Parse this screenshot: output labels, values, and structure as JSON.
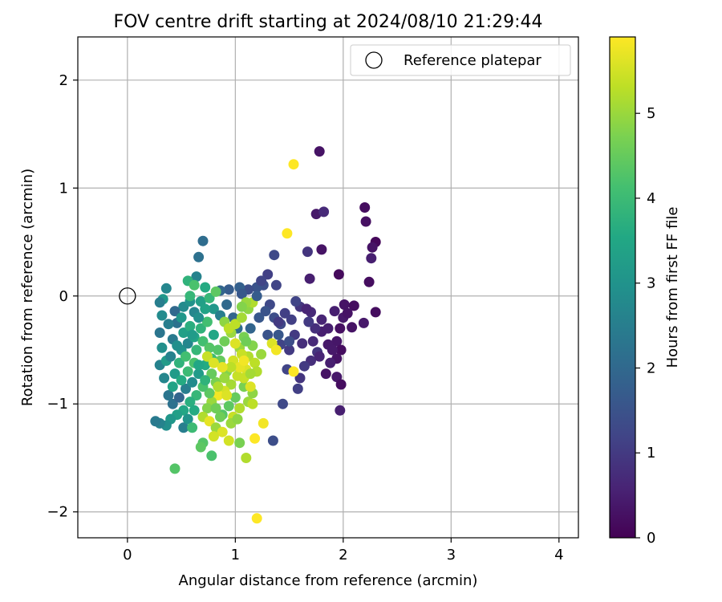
{
  "chart_data": {
    "type": "scatter",
    "title": "FOV centre drift starting at 2024/08/10 21:29:44",
    "xlabel": "Angular distance from reference (arcmin)",
    "ylabel": "Rotation from reference (arcmin)",
    "xlim": [
      -0.46,
      4.18
    ],
    "ylim": [
      -2.24,
      2.4
    ],
    "xticks": [
      0,
      1,
      2,
      3,
      4
    ],
    "yticks": [
      -2,
      -1,
      0,
      1,
      2
    ],
    "grid": true,
    "legend": {
      "position": "top-right",
      "entries": [
        "Reference platepar"
      ]
    },
    "reference_point": {
      "x": 0,
      "y": 0,
      "label": "Reference platepar"
    },
    "colorbar": {
      "label": "Hours from first FF file",
      "min": 0,
      "max": 5.9,
      "ticks": [
        0,
        1,
        2,
        3,
        4,
        5
      ],
      "colormap": "viridis"
    },
    "points": [
      {
        "x": 1.78,
        "y": 1.34,
        "h": 0.3
      },
      {
        "x": 2.2,
        "y": 0.82,
        "h": 0.2
      },
      {
        "x": 2.21,
        "y": 0.69,
        "h": 0.25
      },
      {
        "x": 2.3,
        "y": 0.5,
        "h": 0.1
      },
      {
        "x": 2.27,
        "y": 0.45,
        "h": 0.3
      },
      {
        "x": 2.26,
        "y": 0.35,
        "h": 0.5
      },
      {
        "x": 2.24,
        "y": 0.13,
        "h": 0.2
      },
      {
        "x": 1.96,
        "y": 0.2,
        "h": 0.15
      },
      {
        "x": 1.8,
        "y": 0.43,
        "h": 0.3
      },
      {
        "x": 1.75,
        "y": 0.76,
        "h": 0.4
      },
      {
        "x": 1.82,
        "y": 0.78,
        "h": 0.7
      },
      {
        "x": 1.67,
        "y": 0.41,
        "h": 0.9
      },
      {
        "x": 1.69,
        "y": 0.16,
        "h": 0.5
      },
      {
        "x": 2.3,
        "y": -0.15,
        "h": 0.2
      },
      {
        "x": 2.1,
        "y": -0.09,
        "h": 0.2
      },
      {
        "x": 2.01,
        "y": -0.08,
        "h": 0.3
      },
      {
        "x": 2.08,
        "y": -0.29,
        "h": 0.3
      },
      {
        "x": 2.19,
        "y": -0.25,
        "h": 0.4
      },
      {
        "x": 1.97,
        "y": -0.3,
        "h": 0.25
      },
      {
        "x": 1.94,
        "y": -0.42,
        "h": 0.35
      },
      {
        "x": 1.98,
        "y": -0.5,
        "h": 0.2
      },
      {
        "x": 1.94,
        "y": -0.58,
        "h": 0.3
      },
      {
        "x": 1.84,
        "y": -0.72,
        "h": 0.3
      },
      {
        "x": 1.94,
        "y": -0.75,
        "h": 0.4
      },
      {
        "x": 1.98,
        "y": -0.82,
        "h": 0.2
      },
      {
        "x": 1.97,
        "y": -1.06,
        "h": 0.5
      },
      {
        "x": 1.86,
        "y": -0.45,
        "h": 0.4
      },
      {
        "x": 1.8,
        "y": -0.33,
        "h": 0.5
      },
      {
        "x": 1.8,
        "y": -0.22,
        "h": 0.6
      },
      {
        "x": 1.92,
        "y": -0.14,
        "h": 0.5
      },
      {
        "x": 2.0,
        "y": -0.2,
        "h": 0.4
      },
      {
        "x": 1.7,
        "y": -0.15,
        "h": 0.7
      },
      {
        "x": 1.74,
        "y": -0.3,
        "h": 0.8
      },
      {
        "x": 1.76,
        "y": -0.52,
        "h": 0.9
      },
      {
        "x": 1.7,
        "y": -0.6,
        "h": 0.8
      },
      {
        "x": 1.64,
        "y": -0.65,
        "h": 1.0
      },
      {
        "x": 1.6,
        "y": -0.76,
        "h": 0.9
      },
      {
        "x": 1.58,
        "y": -0.86,
        "h": 1.1
      },
      {
        "x": 1.48,
        "y": -0.68,
        "h": 1.2
      },
      {
        "x": 1.62,
        "y": -0.44,
        "h": 0.8
      },
      {
        "x": 1.55,
        "y": -0.36,
        "h": 1.0
      },
      {
        "x": 1.52,
        "y": -0.22,
        "h": 1.1
      },
      {
        "x": 1.6,
        "y": -0.1,
        "h": 0.9
      },
      {
        "x": 1.56,
        "y": -0.05,
        "h": 1.2
      },
      {
        "x": 1.46,
        "y": -0.16,
        "h": 1.1
      },
      {
        "x": 1.42,
        "y": -0.26,
        "h": 1.3
      },
      {
        "x": 1.36,
        "y": -0.2,
        "h": 1.4
      },
      {
        "x": 1.32,
        "y": -0.08,
        "h": 1.3
      },
      {
        "x": 1.38,
        "y": 0.1,
        "h": 1.2
      },
      {
        "x": 1.3,
        "y": 0.2,
        "h": 1.1
      },
      {
        "x": 1.26,
        "y": 0.1,
        "h": 1.4
      },
      {
        "x": 1.36,
        "y": 0.38,
        "h": 1.3
      },
      {
        "x": 1.2,
        "y": 0.08,
        "h": 1.5
      },
      {
        "x": 1.22,
        "y": -0.2,
        "h": 1.6
      },
      {
        "x": 1.12,
        "y": 0.06,
        "h": 1.4
      },
      {
        "x": 1.04,
        "y": 0.08,
        "h": 1.8
      },
      {
        "x": 1.06,
        "y": 0.02,
        "h": 1.6
      },
      {
        "x": 1.3,
        "y": -0.36,
        "h": 1.5
      },
      {
        "x": 1.42,
        "y": -0.45,
        "h": 1.2
      },
      {
        "x": 1.5,
        "y": -0.5,
        "h": 1.0
      },
      {
        "x": 1.44,
        "y": -1.0,
        "h": 1.3
      },
      {
        "x": 1.35,
        "y": -1.34,
        "h": 1.4
      },
      {
        "x": 1.14,
        "y": -0.3,
        "h": 1.9
      },
      {
        "x": 0.94,
        "y": 0.06,
        "h": 1.7
      },
      {
        "x": 0.86,
        "y": 0.05,
        "h": 1.9
      },
      {
        "x": 0.7,
        "y": 0.51,
        "h": 2.1
      },
      {
        "x": 0.66,
        "y": 0.36,
        "h": 2.2
      },
      {
        "x": 0.64,
        "y": 0.18,
        "h": 2.6
      },
      {
        "x": 0.56,
        "y": 0.14,
        "h": 3.8
      },
      {
        "x": 0.36,
        "y": 0.07,
        "h": 2.7
      },
      {
        "x": 0.33,
        "y": -0.03,
        "h": 3.1
      },
      {
        "x": 0.3,
        "y": -0.06,
        "h": 2.5
      },
      {
        "x": 0.32,
        "y": -0.18,
        "h": 2.8
      },
      {
        "x": 0.3,
        "y": -0.34,
        "h": 2.3
      },
      {
        "x": 0.32,
        "y": -0.48,
        "h": 2.9
      },
      {
        "x": 0.3,
        "y": -0.64,
        "h": 2.6
      },
      {
        "x": 0.36,
        "y": -0.6,
        "h": 3.2
      },
      {
        "x": 0.42,
        "y": -0.4,
        "h": 2.4
      },
      {
        "x": 0.46,
        "y": -0.25,
        "h": 2.2
      },
      {
        "x": 0.52,
        "y": -0.1,
        "h": 2.8
      },
      {
        "x": 0.58,
        "y": -0.05,
        "h": 3.0
      },
      {
        "x": 0.62,
        "y": -0.15,
        "h": 2.7
      },
      {
        "x": 0.68,
        "y": -0.05,
        "h": 3.3
      },
      {
        "x": 0.72,
        "y": 0.08,
        "h": 3.6
      },
      {
        "x": 0.76,
        "y": -0.02,
        "h": 3.9
      },
      {
        "x": 0.8,
        "y": -0.12,
        "h": 3.1
      },
      {
        "x": 0.86,
        "y": -0.18,
        "h": 2.5
      },
      {
        "x": 0.92,
        "y": -0.08,
        "h": 2.0
      },
      {
        "x": 0.98,
        "y": -0.2,
        "h": 1.9
      },
      {
        "x": 1.02,
        "y": -0.3,
        "h": 2.1
      },
      {
        "x": 1.08,
        "y": -0.38,
        "h": 4.7
      },
      {
        "x": 1.04,
        "y": -0.48,
        "h": 5.0
      },
      {
        "x": 1.12,
        "y": -0.56,
        "h": 5.2
      },
      {
        "x": 1.18,
        "y": -0.62,
        "h": 5.3
      },
      {
        "x": 1.1,
        "y": -0.68,
        "h": 5.6
      },
      {
        "x": 1.02,
        "y": -0.74,
        "h": 5.4
      },
      {
        "x": 0.96,
        "y": -0.82,
        "h": 5.1
      },
      {
        "x": 0.9,
        "y": -0.88,
        "h": 5.5
      },
      {
        "x": 0.84,
        "y": -0.92,
        "h": 5.8
      },
      {
        "x": 0.78,
        "y": -0.98,
        "h": 5.0
      },
      {
        "x": 0.74,
        "y": -1.04,
        "h": 4.8
      },
      {
        "x": 0.7,
        "y": -1.12,
        "h": 5.2
      },
      {
        "x": 0.76,
        "y": -1.16,
        "h": 5.7
      },
      {
        "x": 0.82,
        "y": -1.22,
        "h": 5.0
      },
      {
        "x": 0.88,
        "y": -1.26,
        "h": 5.6
      },
      {
        "x": 0.98,
        "y": -1.12,
        "h": 5.4
      },
      {
        "x": 1.04,
        "y": -1.04,
        "h": 5.2
      },
      {
        "x": 1.12,
        "y": -0.98,
        "h": 5.0
      },
      {
        "x": 1.16,
        "y": -0.9,
        "h": 4.9
      },
      {
        "x": 1.08,
        "y": -0.84,
        "h": 4.7
      },
      {
        "x": 1.0,
        "y": -0.94,
        "h": 4.5
      },
      {
        "x": 0.94,
        "y": -1.02,
        "h": 4.4
      },
      {
        "x": 0.88,
        "y": -1.1,
        "h": 4.3
      },
      {
        "x": 0.82,
        "y": -1.04,
        "h": 4.6
      },
      {
        "x": 0.76,
        "y": -0.9,
        "h": 4.4
      },
      {
        "x": 0.7,
        "y": -0.84,
        "h": 4.2
      },
      {
        "x": 0.64,
        "y": -0.92,
        "h": 3.9
      },
      {
        "x": 0.58,
        "y": -0.98,
        "h": 3.7
      },
      {
        "x": 0.52,
        "y": -1.06,
        "h": 3.5
      },
      {
        "x": 0.46,
        "y": -1.1,
        "h": 3.3
      },
      {
        "x": 0.4,
        "y": -1.14,
        "h": 3.1
      },
      {
        "x": 0.36,
        "y": -1.2,
        "h": 2.9
      },
      {
        "x": 0.3,
        "y": -1.18,
        "h": 2.6
      },
      {
        "x": 0.26,
        "y": -1.16,
        "h": 2.4
      },
      {
        "x": 0.42,
        "y": -1.0,
        "h": 2.2
      },
      {
        "x": 0.48,
        "y": -0.94,
        "h": 1.9
      },
      {
        "x": 0.54,
        "y": -0.86,
        "h": 2.5
      },
      {
        "x": 0.6,
        "y": -0.8,
        "h": 2.8
      },
      {
        "x": 0.66,
        "y": -0.72,
        "h": 3.2
      },
      {
        "x": 0.72,
        "y": -0.64,
        "h": 3.6
      },
      {
        "x": 0.78,
        "y": -0.58,
        "h": 4.0
      },
      {
        "x": 0.84,
        "y": -0.5,
        "h": 4.3
      },
      {
        "x": 0.9,
        "y": -0.42,
        "h": 4.6
      },
      {
        "x": 0.96,
        "y": -0.34,
        "h": 5.0
      },
      {
        "x": 1.0,
        "y": -0.26,
        "h": 5.3
      },
      {
        "x": 1.06,
        "y": -0.2,
        "h": 5.1
      },
      {
        "x": 1.12,
        "y": -0.12,
        "h": 4.9
      },
      {
        "x": 1.16,
        "y": -0.06,
        "h": 5.2
      },
      {
        "x": 0.5,
        "y": -0.5,
        "h": 3.0
      },
      {
        "x": 0.56,
        "y": -0.44,
        "h": 2.7
      },
      {
        "x": 0.62,
        "y": -0.38,
        "h": 3.4
      },
      {
        "x": 0.68,
        "y": -0.3,
        "h": 3.8
      },
      {
        "x": 0.74,
        "y": -0.24,
        "h": 4.1
      },
      {
        "x": 0.8,
        "y": -0.36,
        "h": 3.5
      },
      {
        "x": 0.86,
        "y": -0.6,
        "h": 4.5
      },
      {
        "x": 0.92,
        "y": -0.7,
        "h": 4.8
      },
      {
        "x": 0.98,
        "y": -0.6,
        "h": 5.5
      },
      {
        "x": 1.04,
        "y": -0.66,
        "h": 5.7
      },
      {
        "x": 0.44,
        "y": -0.72,
        "h": 3.2
      },
      {
        "x": 0.5,
        "y": -0.78,
        "h": 3.6
      },
      {
        "x": 0.56,
        "y": -0.7,
        "h": 4.0
      },
      {
        "x": 0.62,
        "y": -0.62,
        "h": 4.2
      },
      {
        "x": 0.4,
        "y": -0.56,
        "h": 2.6
      },
      {
        "x": 0.46,
        "y": -0.46,
        "h": 2.9
      },
      {
        "x": 0.52,
        "y": -0.34,
        "h": 3.3
      },
      {
        "x": 0.58,
        "y": -0.28,
        "h": 3.7
      },
      {
        "x": 0.64,
        "y": -0.5,
        "h": 3.9
      },
      {
        "x": 0.7,
        "y": -0.42,
        "h": 4.1
      },
      {
        "x": 0.76,
        "y": -0.48,
        "h": 4.3
      },
      {
        "x": 0.82,
        "y": -0.8,
        "h": 4.7
      },
      {
        "x": 0.78,
        "y": -0.72,
        "h": 4.5
      },
      {
        "x": 0.9,
        "y": -0.76,
        "h": 5.0
      },
      {
        "x": 0.96,
        "y": -0.66,
        "h": 5.3
      },
      {
        "x": 1.08,
        "y": -0.76,
        "h": 5.4
      },
      {
        "x": 1.14,
        "y": -0.84,
        "h": 5.6
      },
      {
        "x": 1.2,
        "y": -0.7,
        "h": 5.2
      },
      {
        "x": 1.24,
        "y": -0.54,
        "h": 5.0
      },
      {
        "x": 1.16,
        "y": -0.46,
        "h": 4.8
      },
      {
        "x": 1.1,
        "y": -0.42,
        "h": 4.6
      },
      {
        "x": 1.34,
        "y": -0.44,
        "h": 5.6
      },
      {
        "x": 1.38,
        "y": -0.5,
        "h": 5.8
      },
      {
        "x": 1.54,
        "y": -0.7,
        "h": 5.9
      },
      {
        "x": 1.26,
        "y": -1.18,
        "h": 5.8
      },
      {
        "x": 1.18,
        "y": -1.32,
        "h": 5.9
      },
      {
        "x": 1.1,
        "y": -1.5,
        "h": 5.2
      },
      {
        "x": 1.04,
        "y": -1.36,
        "h": 4.7
      },
      {
        "x": 0.96,
        "y": -1.18,
        "h": 5.0
      },
      {
        "x": 0.86,
        "y": -1.12,
        "h": 4.6
      },
      {
        "x": 0.8,
        "y": -1.3,
        "h": 5.5
      },
      {
        "x": 0.78,
        "y": -1.48,
        "h": 4.2
      },
      {
        "x": 0.7,
        "y": -1.36,
        "h": 4.3
      },
      {
        "x": 0.68,
        "y": -1.4,
        "h": 4.4
      },
      {
        "x": 0.44,
        "y": -1.6,
        "h": 4.3
      },
      {
        "x": 1.2,
        "y": -2.06,
        "h": 5.9
      },
      {
        "x": 1.54,
        "y": 1.22,
        "h": 5.9
      },
      {
        "x": 1.48,
        "y": 0.58,
        "h": 5.9
      },
      {
        "x": 0.52,
        "y": -1.22,
        "h": 2.5
      },
      {
        "x": 0.56,
        "y": -1.14,
        "h": 3.0
      },
      {
        "x": 0.62,
        "y": -1.06,
        "h": 3.6
      },
      {
        "x": 0.6,
        "y": -1.22,
        "h": 4.0
      },
      {
        "x": 0.38,
        "y": -0.92,
        "h": 2.3
      },
      {
        "x": 0.34,
        "y": -0.76,
        "h": 2.7
      },
      {
        "x": 0.42,
        "y": -0.84,
        "h": 3.4
      },
      {
        "x": 0.48,
        "y": -0.62,
        "h": 3.8
      },
      {
        "x": 0.54,
        "y": -0.56,
        "h": 4.1
      },
      {
        "x": 0.6,
        "y": -0.36,
        "h": 3.2
      },
      {
        "x": 0.66,
        "y": -0.2,
        "h": 2.9
      },
      {
        "x": 0.72,
        "y": -0.12,
        "h": 3.4
      },
      {
        "x": 0.38,
        "y": -0.26,
        "h": 2.5
      },
      {
        "x": 0.44,
        "y": -0.14,
        "h": 2.0
      },
      {
        "x": 0.5,
        "y": -0.2,
        "h": 3.1
      },
      {
        "x": 0.58,
        "y": 0.0,
        "h": 3.9
      },
      {
        "x": 0.62,
        "y": 0.1,
        "h": 4.2
      },
      {
        "x": 0.82,
        "y": 0.04,
        "h": 4.4
      },
      {
        "x": 0.9,
        "y": -0.24,
        "h": 4.9
      },
      {
        "x": 0.94,
        "y": -0.3,
        "h": 5.3
      },
      {
        "x": 1.0,
        "y": -0.44,
        "h": 5.6
      },
      {
        "x": 1.06,
        "y": -0.54,
        "h": 5.4
      },
      {
        "x": 1.14,
        "y": -0.72,
        "h": 5.1
      },
      {
        "x": 1.08,
        "y": -0.6,
        "h": 5.8
      },
      {
        "x": 0.88,
        "y": -0.66,
        "h": 5.7
      },
      {
        "x": 0.84,
        "y": -0.84,
        "h": 5.2
      },
      {
        "x": 0.92,
        "y": -0.92,
        "h": 5.6
      },
      {
        "x": 0.72,
        "y": -0.78,
        "h": 3.8
      },
      {
        "x": 0.66,
        "y": -0.64,
        "h": 3.5
      },
      {
        "x": 0.74,
        "y": -0.56,
        "h": 5.4
      },
      {
        "x": 0.8,
        "y": -0.62,
        "h": 5.6
      },
      {
        "x": 1.1,
        "y": -0.06,
        "h": 5.0
      },
      {
        "x": 1.06,
        "y": -0.1,
        "h": 4.8
      },
      {
        "x": 1.16,
        "y": -1.0,
        "h": 5.3
      },
      {
        "x": 1.02,
        "y": -1.14,
        "h": 4.9
      },
      {
        "x": 0.94,
        "y": -1.34,
        "h": 5.5
      },
      {
        "x": 1.4,
        "y": -0.24,
        "h": 1.0
      },
      {
        "x": 1.28,
        "y": -0.14,
        "h": 1.5
      },
      {
        "x": 1.2,
        "y": 0.0,
        "h": 1.7
      },
      {
        "x": 1.24,
        "y": 0.14,
        "h": 1.2
      },
      {
        "x": 1.4,
        "y": -0.36,
        "h": 1.6
      },
      {
        "x": 1.5,
        "y": -0.42,
        "h": 1.4
      },
      {
        "x": 1.66,
        "y": -0.12,
        "h": 0.6
      },
      {
        "x": 1.68,
        "y": -0.24,
        "h": 1.0
      },
      {
        "x": 1.72,
        "y": -0.42,
        "h": 0.7
      },
      {
        "x": 1.78,
        "y": -0.56,
        "h": 0.6
      },
      {
        "x": 1.86,
        "y": -0.3,
        "h": 0.5
      },
      {
        "x": 1.9,
        "y": -0.5,
        "h": 0.4
      },
      {
        "x": 2.04,
        "y": -0.16,
        "h": 0.3
      },
      {
        "x": 1.88,
        "y": -0.62,
        "h": 0.5
      }
    ]
  }
}
